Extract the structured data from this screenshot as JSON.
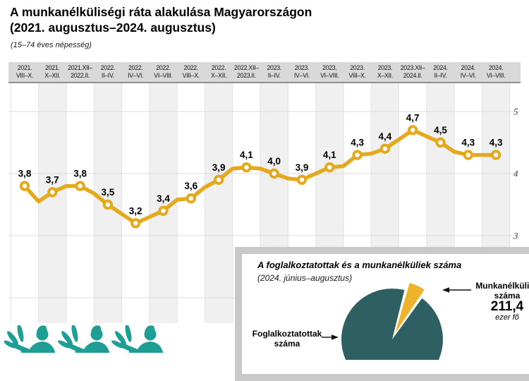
{
  "header": {
    "title_line1": "A munkanélküliségi ráta alakulása Magyarországon",
    "title_line2": "(2021. augusztus–2024. augusztus)",
    "subtitle": "(15–74 éves népesség)"
  },
  "colors": {
    "line": "#e4a91c",
    "marker_fill": "#ffffff",
    "band_bg": "#d9d9d9",
    "band_border": "#8f8f8f",
    "column_alt": "#f0f0f0",
    "column_line": "#e3e3e3",
    "gridline": "#dcdcdc",
    "tick_text": "#3a3a3a",
    "pie_main": "#2e5f63",
    "pie_slice": "#eeb32a",
    "icon_teal": "#1f9e96",
    "inset_border": "#c9c9c9"
  },
  "chart_data": [
    {
      "type": "line",
      "title": "A munkanélküliségi ráta alakulása Magyarországon (2021. augusztus–2024. augusztus)",
      "subtitle": "(15–74 éves népesség)",
      "categories": [
        {
          "line1": "2021.",
          "line2": "VIII–X."
        },
        {
          "line1": "2021.",
          "line2": "X–XII."
        },
        {
          "line1": "2021.XII–",
          "line2": "2022.II."
        },
        {
          "line1": "2022.",
          "line2": "II–IV."
        },
        {
          "line1": "2022.",
          "line2": "IV–VI."
        },
        {
          "line1": "2022.",
          "line2": "VI–VIII."
        },
        {
          "line1": "2022.",
          "line2": "VIII–X."
        },
        {
          "line1": "2022.",
          "line2": "X–XII."
        },
        {
          "line1": "2022.XII–",
          "line2": "2023.II."
        },
        {
          "line1": "2023.",
          "line2": "II–IV."
        },
        {
          "line1": "2023.",
          "line2": "IV–VI."
        },
        {
          "line1": "2023.",
          "line2": "VI–VIII."
        },
        {
          "line1": "2023.",
          "line2": "VIII–X."
        },
        {
          "line1": "2023.",
          "line2": "X–XII."
        },
        {
          "line1": "2023.XII–",
          "line2": "2024.II."
        },
        {
          "line1": "2024.",
          "line2": "II–IV."
        },
        {
          "line1": "2024.",
          "line2": "IV–VI."
        },
        {
          "line1": "2024.",
          "line2": "VI–VIII."
        }
      ],
      "values": [
        3.8,
        3.7,
        3.8,
        3.5,
        3.2,
        3.4,
        3.6,
        3.9,
        4.1,
        4.0,
        3.9,
        4.1,
        4.3,
        4.4,
        4.7,
        4.5,
        4.3,
        4.3
      ],
      "value_labels": [
        "3,8",
        "3,7",
        "3,8",
        "3,5",
        "3,2",
        "3,4",
        "3,6",
        "3,9",
        "4,1",
        "4,0",
        "3,9",
        "4,1",
        "4,3",
        "4,4",
        "4,7",
        "4,5",
        "4,3",
        "4,3"
      ],
      "polyline_values": [
        3.8,
        3.55,
        3.7,
        3.8,
        3.8,
        3.68,
        3.5,
        3.35,
        3.2,
        3.3,
        3.4,
        3.58,
        3.6,
        3.78,
        3.9,
        4.08,
        4.1,
        4.08,
        4.0,
        3.92,
        3.9,
        4.0,
        4.1,
        4.12,
        4.3,
        4.32,
        4.4,
        4.55,
        4.7,
        4.6,
        4.5,
        4.35,
        4.3,
        4.3,
        4.3
      ],
      "y_gridlines": [
        5,
        4,
        3,
        2
      ],
      "y_tick_labels_visible": [
        "5",
        "4",
        "3"
      ],
      "y_axis_side": "right",
      "grid": true,
      "legend_position": "none"
    },
    {
      "type": "pie",
      "title": "A foglalkoztatottak és a munkanélküliek száma",
      "subtitle": "(2024. június–augusztus)",
      "slices": [
        {
          "label": "Foglalkoztatottak száma",
          "color": "#2e5f63"
        },
        {
          "label": "Munkanélküliek száma",
          "value": 211.4,
          "value_text": "211,4",
          "unit": "ezer fő",
          "color": "#eeb32a",
          "exploded": true
        }
      ],
      "legend_position": "callout-arrows"
    }
  ]
}
